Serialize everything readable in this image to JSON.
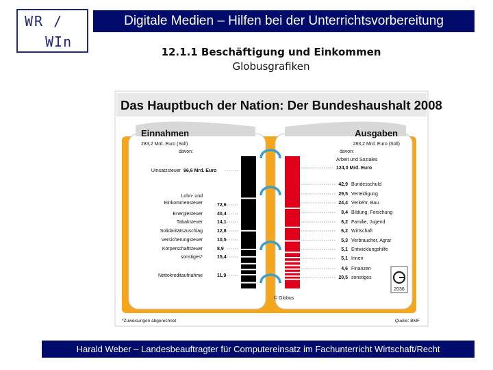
{
  "logo": {
    "line1": "WR /",
    "line2": "WIn"
  },
  "header": {
    "title": "Digitale Medien – Hilfen bei der Unterrichtsvorbereitung",
    "section": "12.1.1 Beschäftigung und Einkommen",
    "subtitle": "Globusgrafiken"
  },
  "footer": {
    "text": "Harald Weber – Landesbeauftragter für Computereinsatz im Fachunterricht Wirtschaft/Recht"
  },
  "graphic": {
    "title": "Das Hauptbuch der Nation: Der Bundeshaushalt 2008",
    "colors": {
      "income": "#000000",
      "expense": "#e0001a",
      "book": "#f4a71d",
      "title_band": "#e8e8e8"
    },
    "income": {
      "heading": "Einnahmen",
      "total": "283,2 Mrd. Euro (Soll)",
      "davon": "davon:",
      "items": [
        {
          "label": "Umsatzsteuer",
          "value": "96,6 Mrd. Euro"
        },
        {
          "label": "Lohn- und",
          "label2": "Einkommensteuer",
          "value": "72,6"
        },
        {
          "label": "Energiesteuer",
          "value": "40,4"
        },
        {
          "label": "Tabaksteuer",
          "value": "14,1"
        },
        {
          "label": "Solidaritätszuschlag",
          "value": "12,8"
        },
        {
          "label": "Versicherungsteuer",
          "value": "10,5"
        },
        {
          "label": "Körperschaftsteuer",
          "value": "8,9"
        },
        {
          "label": "sonstiges*",
          "value": "15,4"
        },
        {
          "label": "Nettokreditaufnahme",
          "value": "11,9"
        }
      ]
    },
    "expense": {
      "heading": "Ausgaben",
      "total": "283,2 Mrd. Euro (Soll)",
      "davon": "davon:",
      "items": [
        {
          "label": "Arbeit und Soziales",
          "value": "124,0 Mrd. Euro"
        },
        {
          "label": "Bundesschuld",
          "value": "42,9"
        },
        {
          "label": "Verteidigung",
          "value": "29,5"
        },
        {
          "label": "Verkehr, Bau",
          "value": "24,4"
        },
        {
          "label": "Bildung, Forschung",
          "value": "9,4"
        },
        {
          "label": "Familie, Jugend",
          "value": "6,2"
        },
        {
          "label": "Wirtschaft",
          "value": "6,2"
        },
        {
          "label": "Verbraucher, Agrar",
          "value": "5,3"
        },
        {
          "label": "Entwicklungshilfe",
          "value": "5,1"
        },
        {
          "label": "Innen",
          "value": "5,1"
        },
        {
          "label": "Finanzen",
          "value": "4,6"
        },
        {
          "label": "sonstiges",
          "value": "20,5"
        }
      ]
    },
    "copyright": "© Globus",
    "globus_number": "2036",
    "footnote": "*Zuweisungen abgerechnet",
    "source": "Quelle: BMF"
  }
}
